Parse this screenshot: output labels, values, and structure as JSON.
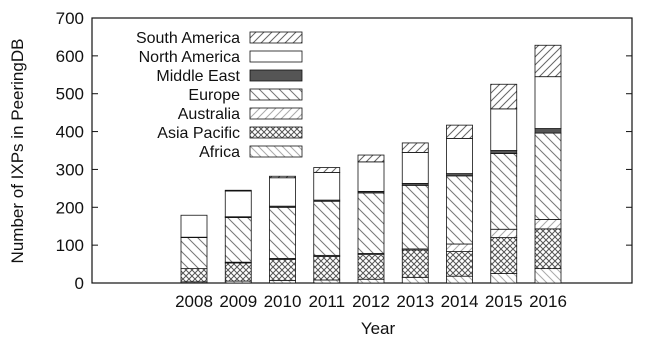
{
  "chart_data": {
    "type": "bar",
    "stacked": true,
    "xlabel": "Year",
    "ylabel": "Number of IXPs in PeeringDB",
    "ylim": [
      0,
      700
    ],
    "yticks": [
      0,
      100,
      200,
      300,
      400,
      500,
      600,
      700
    ],
    "categories": [
      "2008",
      "2009",
      "2010",
      "2011",
      "2012",
      "2013",
      "2014",
      "2015",
      "2016"
    ],
    "legend_position": "top-left",
    "series": [
      {
        "name": "Africa",
        "pattern": "hatch-backslash-light",
        "values": [
          3,
          5,
          7,
          8,
          10,
          15,
          18,
          25,
          38
        ]
      },
      {
        "name": "Asia Pacific",
        "pattern": "crosshatch",
        "values": [
          35,
          48,
          55,
          62,
          65,
          72,
          65,
          95,
          105
        ]
      },
      {
        "name": "Australia",
        "pattern": "hatch-slash-light",
        "values": [
          0,
          2,
          3,
          3,
          3,
          3,
          20,
          22,
          25
        ]
      },
      {
        "name": "Europe",
        "pattern": "hatch-backslash",
        "values": [
          82,
          118,
          135,
          143,
          160,
          168,
          180,
          200,
          228
        ]
      },
      {
        "name": "Middle East",
        "pattern": "solid-dark",
        "values": [
          1,
          2,
          3,
          3,
          4,
          5,
          6,
          8,
          12
        ]
      },
      {
        "name": "North America",
        "pattern": "empty",
        "values": [
          58,
          68,
          75,
          73,
          78,
          82,
          93,
          110,
          137
        ]
      },
      {
        "name": "South America",
        "pattern": "hatch-slash",
        "values": [
          0,
          2,
          4,
          13,
          18,
          25,
          35,
          65,
          83
        ]
      }
    ],
    "legend_order": [
      "South America",
      "North America",
      "Middle East",
      "Europe",
      "Australia",
      "Asia Pacific",
      "Africa"
    ]
  }
}
